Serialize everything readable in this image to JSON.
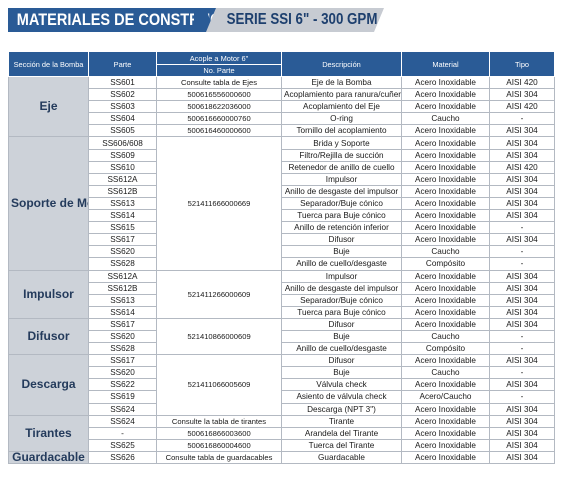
{
  "banner": {
    "left_text": "MATERIALES DE CONSTRUCCIÓN",
    "right_text": "SERIE SSI 6\" - 300 GPM"
  },
  "table": {
    "headers": {
      "seccion": "Sección de la Bomba",
      "parte": "Parte",
      "acople": "Acople a Motor 6\"",
      "no_parte": "No. Parte",
      "descripcion": "Descripción",
      "material": "Material",
      "tipo": "Tipo"
    },
    "sections": [
      {
        "name": "Eje",
        "shared_code": null,
        "rows": [
          {
            "parte": "SS601",
            "no_parte": "Consulte tabla de Ejes",
            "descripcion": "Eje de la Bomba",
            "material": "Acero Inoxidable",
            "tipo": "AISI 420"
          },
          {
            "parte": "SS602",
            "no_parte": "500616556000600",
            "descripcion": "Acoplamiento para ranura/cuñero",
            "material": "Acero Inoxidable",
            "tipo": "AISI 304"
          },
          {
            "parte": "SS603",
            "no_parte": "500618622036000",
            "descripcion": "Acoplamiento del Eje",
            "material": "Acero Inoxidable",
            "tipo": "AISI 420"
          },
          {
            "parte": "SS604",
            "no_parte": "500616660000760",
            "descripcion": "O-ring",
            "material": "Caucho",
            "tipo": "-"
          },
          {
            "parte": "SS605",
            "no_parte": "500616460000600",
            "descripcion": "Tornillo del acoplamiento",
            "material": "Acero Inoxidable",
            "tipo": "AISI 304"
          }
        ]
      },
      {
        "name": "Soporte de Motor",
        "shared_code": "521411666000669",
        "rows": [
          {
            "parte": "SS606/608",
            "descripcion": "Brida y Soporte",
            "material": "Acero Inoxidable",
            "tipo": "AISI 304"
          },
          {
            "parte": "SS609",
            "descripcion": "Filtro/Rejilla de succión",
            "material": "Acero Inoxidable",
            "tipo": "AISI 304"
          },
          {
            "parte": "SS610",
            "descripcion": "Retenedor de anillo de cuello",
            "material": "Acero Inoxidable",
            "tipo": "AISI 420"
          },
          {
            "parte": "SS612A",
            "descripcion": "Impulsor",
            "material": "Acero Inoxidable",
            "tipo": "AISI 304"
          },
          {
            "parte": "SS612B",
            "descripcion": "Anillo de desgaste del impulsor",
            "material": "Acero Inoxidable",
            "tipo": "AISI 304"
          },
          {
            "parte": "SS613",
            "descripcion": "Separador/Buje cónico",
            "material": "Acero Inoxidable",
            "tipo": "AISI 304"
          },
          {
            "parte": "SS614",
            "descripcion": "Tuerca para Buje cónico",
            "material": "Acero Inoxidable",
            "tipo": "AISI 304"
          },
          {
            "parte": "SS615",
            "descripcion": "Anillo de retención inferior",
            "material": "Acero Inoxidable",
            "tipo": "-"
          },
          {
            "parte": "SS617",
            "descripcion": "Difusor",
            "material": "Acero Inoxidable",
            "tipo": "AISI 304"
          },
          {
            "parte": "SS620",
            "descripcion": "Buje",
            "material": "Caucho",
            "tipo": "-"
          },
          {
            "parte": "SS628",
            "descripcion": "Anillo de cuello/desgaste",
            "material": "Compósito",
            "tipo": "-"
          }
        ]
      },
      {
        "name": "Impulsor",
        "shared_code": "521411266000609",
        "rows": [
          {
            "parte": "SS612A",
            "descripcion": "Impulsor",
            "material": "Acero Inoxidable",
            "tipo": "AISI 304"
          },
          {
            "parte": "SS612B",
            "descripcion": "Anillo de desgaste del impulsor",
            "material": "Acero Inoxidable",
            "tipo": "AISI 304"
          },
          {
            "parte": "SS613",
            "descripcion": "Separador/Buje cónico",
            "material": "Acero Inoxidable",
            "tipo": "AISI 304"
          },
          {
            "parte": "SS614",
            "descripcion": "Tuerca para Buje cónico",
            "material": "Acero Inoxidable",
            "tipo": "AISI 304"
          }
        ]
      },
      {
        "name": "Difusor",
        "shared_code": "521410866000609",
        "rows": [
          {
            "parte": "SS617",
            "descripcion": "Difusor",
            "material": "Acero Inoxidable",
            "tipo": "AISI 304"
          },
          {
            "parte": "SS620",
            "descripcion": "Buje",
            "material": "Caucho",
            "tipo": "-"
          },
          {
            "parte": "SS628",
            "descripcion": "Anillo de cuello/desgaste",
            "material": "Compósito",
            "tipo": "-"
          }
        ]
      },
      {
        "name": "Descarga",
        "shared_code": "521411066005609",
        "rows": [
          {
            "parte": "SS617",
            "descripcion": "Difusor",
            "material": "Acero Inoxidable",
            "tipo": "AISI 304"
          },
          {
            "parte": "SS620",
            "descripcion": "Buje",
            "material": "Caucho",
            "tipo": "-"
          },
          {
            "parte": "SS622",
            "descripcion": "Válvula check",
            "material": "Acero Inoxidable",
            "tipo": "AISI 304"
          },
          {
            "parte": "SS619",
            "descripcion": "Asiento de válvula check",
            "material": "Acero/Caucho",
            "tipo": "-"
          },
          {
            "parte": "SS624",
            "descripcion": "Descarga (NPT 3\")",
            "material": "Acero Inoxidable",
            "tipo": "AISI 304"
          }
        ]
      },
      {
        "name": "Tirantes",
        "shared_code": null,
        "rows": [
          {
            "parte": "SS624",
            "no_parte": "Consulte  la tabla de tirantes",
            "descripcion": "Tirante",
            "material": "Acero Inoxidable",
            "tipo": "AISI 304"
          },
          {
            "parte": "-",
            "no_parte": "500616866003600",
            "descripcion": "Arandela del Tirante",
            "material": "Acero Inoxidable",
            "tipo": "AISI 304"
          },
          {
            "parte": "SS625",
            "no_parte": "500616860004600",
            "descripcion": "Tuerca del Tirante",
            "material": "Acero Inoxidable",
            "tipo": "AISI 304"
          }
        ]
      },
      {
        "name": "Guardacable",
        "shared_code": null,
        "rows": [
          {
            "parte": "SS626",
            "no_parte": "Consulte  tabla de guardacables",
            "descripcion": "Guardacable",
            "material": "Acero Inoxidable",
            "tipo": "AISI 304"
          }
        ]
      }
    ]
  }
}
